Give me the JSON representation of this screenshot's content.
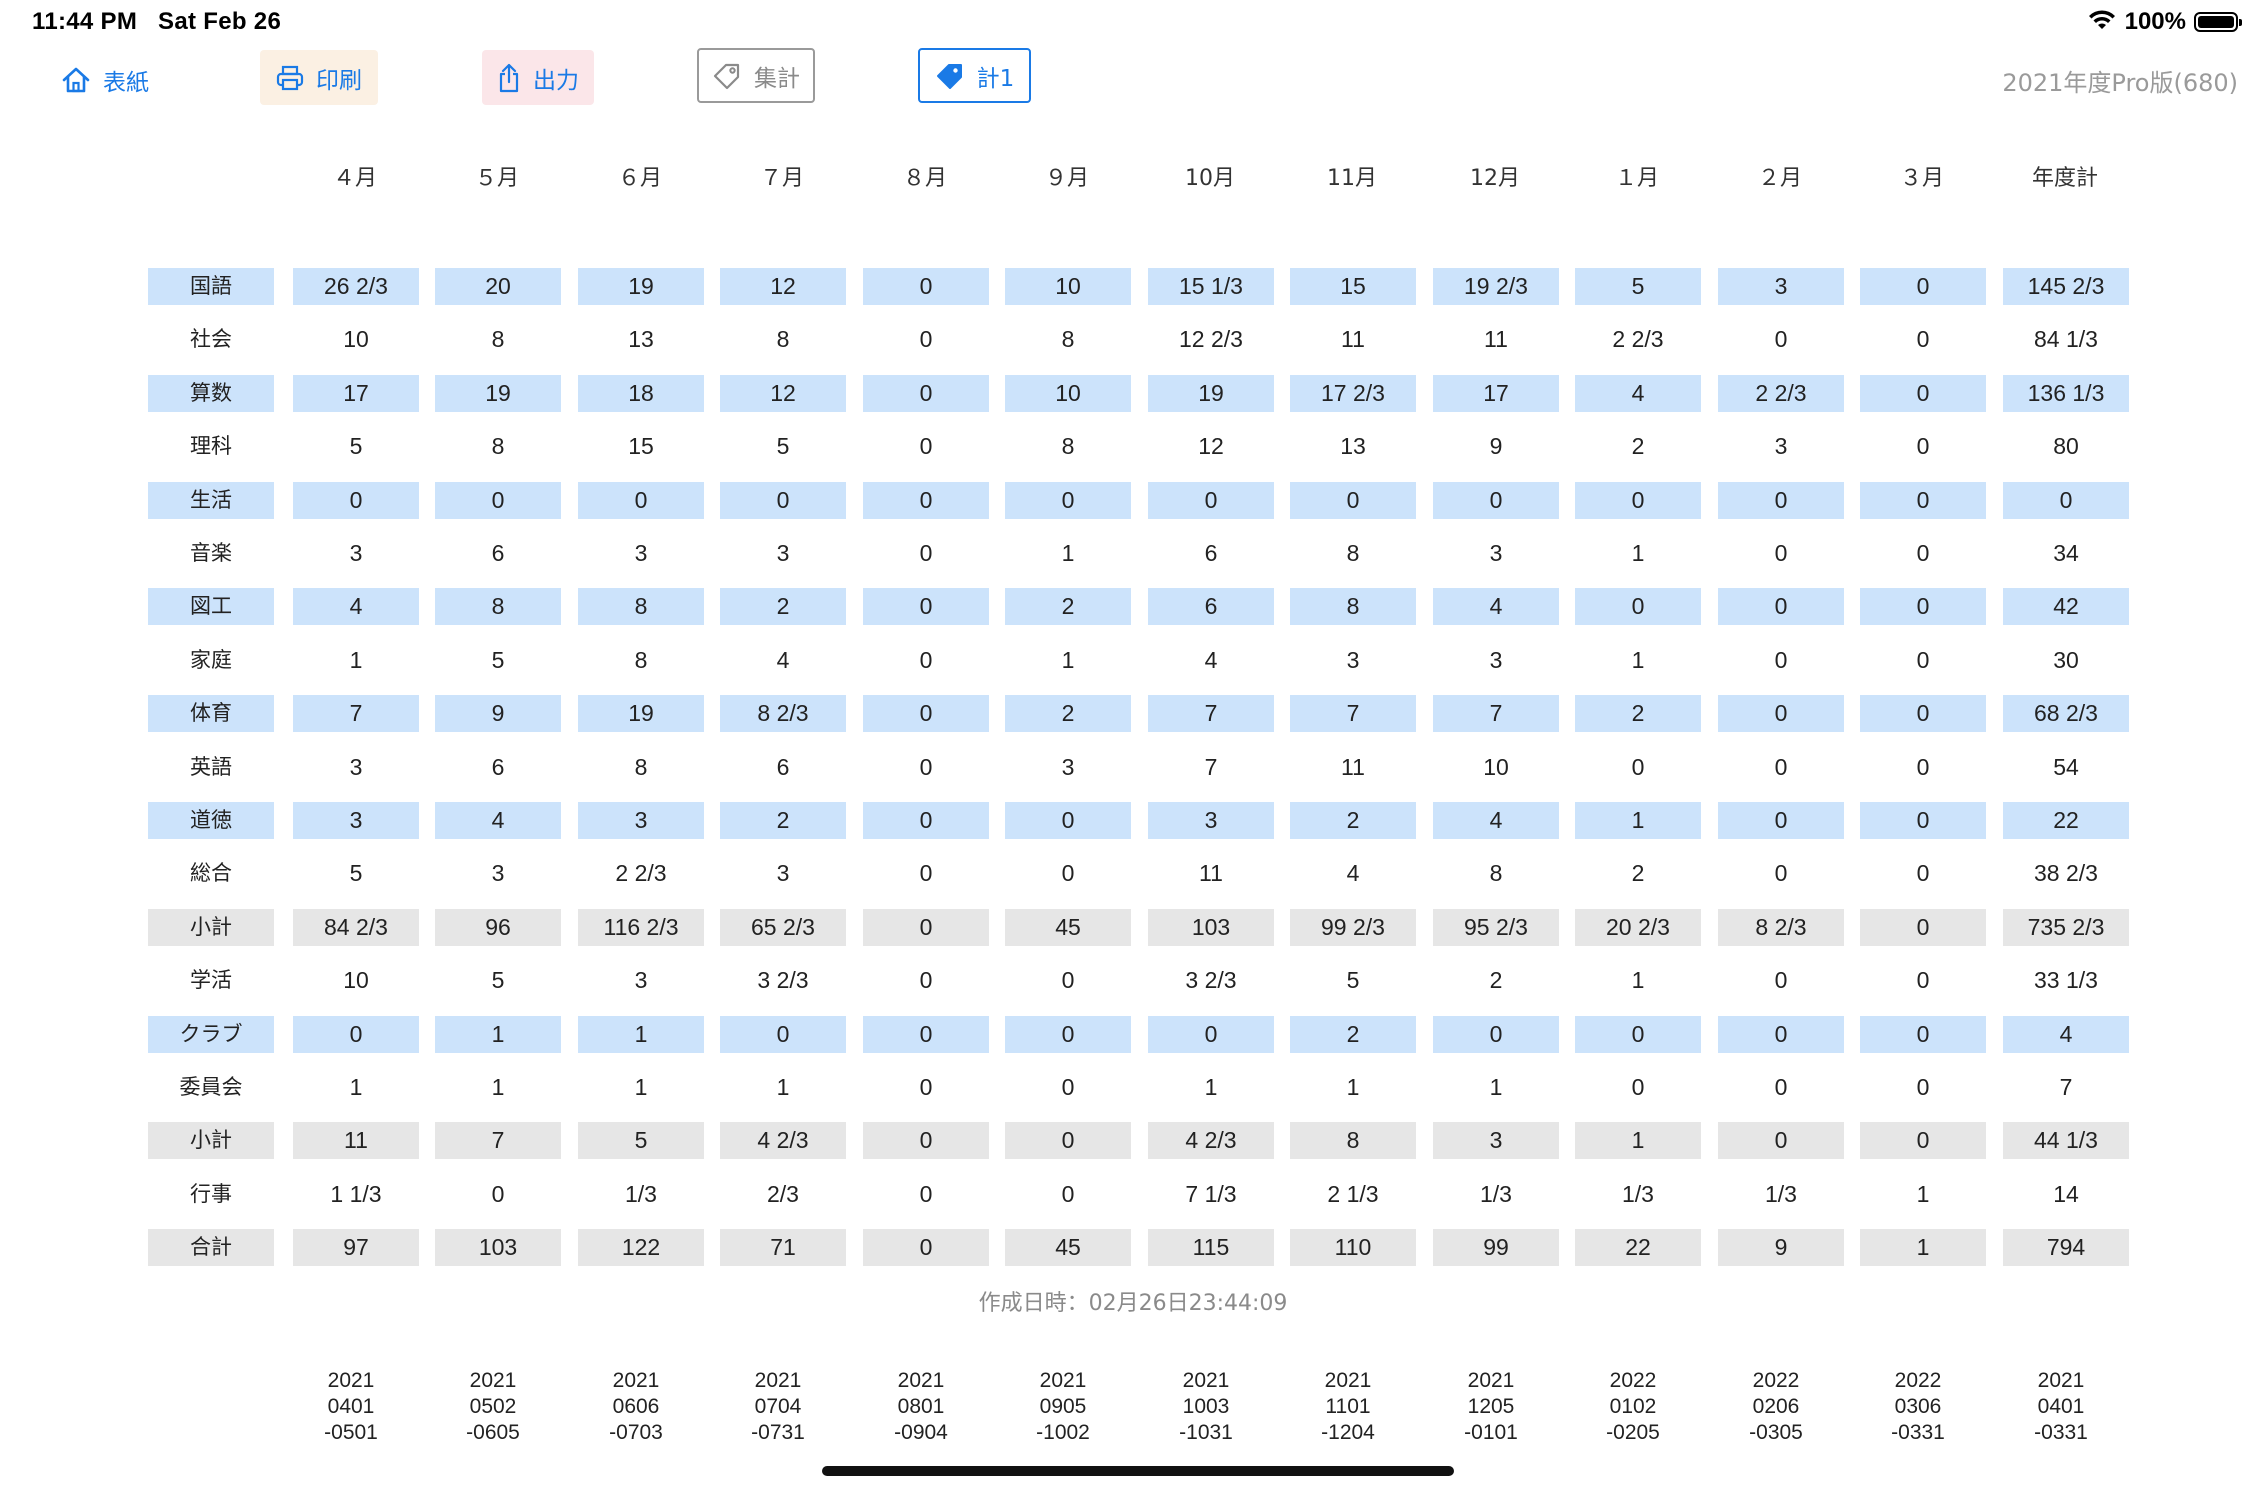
{
  "status_bar": {
    "time": "11:44 PM",
    "date": "Sat Feb 26",
    "battery": "100%"
  },
  "toolbar": {
    "home_label": "表紙",
    "print_label": "印刷",
    "export_label": "出力",
    "total_label": "集計",
    "total1_label": "計1",
    "version": "2021年度Pro版(680)"
  },
  "months": [
    "４月",
    "５月",
    "６月",
    "７月",
    "８月",
    "９月",
    "10月",
    "11月",
    "12月",
    "１月",
    "２月",
    "３月",
    "年度計"
  ],
  "rows": [
    {
      "label": "国語",
      "style": "blue",
      "values": [
        "26 2/3",
        "20",
        "19",
        "12",
        "0",
        "10",
        "15 1/3",
        "15",
        "19 2/3",
        "5",
        "3",
        "0",
        "145 2/3"
      ]
    },
    {
      "label": "社会",
      "style": "plain",
      "values": [
        "10",
        "8",
        "13",
        "8",
        "0",
        "8",
        "12 2/3",
        "11",
        "11",
        "2 2/3",
        "0",
        "0",
        "84 1/3"
      ]
    },
    {
      "label": "算数",
      "style": "blue",
      "values": [
        "17",
        "19",
        "18",
        "12",
        "0",
        "10",
        "19",
        "17 2/3",
        "17",
        "4",
        "2 2/3",
        "0",
        "136 1/3"
      ]
    },
    {
      "label": "理科",
      "style": "plain",
      "values": [
        "5",
        "8",
        "15",
        "5",
        "0",
        "8",
        "12",
        "13",
        "9",
        "2",
        "3",
        "0",
        "80"
      ]
    },
    {
      "label": "生活",
      "style": "blue",
      "values": [
        "0",
        "0",
        "0",
        "0",
        "0",
        "0",
        "0",
        "0",
        "0",
        "0",
        "0",
        "0",
        "0"
      ]
    },
    {
      "label": "音楽",
      "style": "plain",
      "values": [
        "3",
        "6",
        "3",
        "3",
        "0",
        "1",
        "6",
        "8",
        "3",
        "1",
        "0",
        "0",
        "34"
      ]
    },
    {
      "label": "図工",
      "style": "blue",
      "values": [
        "4",
        "8",
        "8",
        "2",
        "0",
        "2",
        "6",
        "8",
        "4",
        "0",
        "0",
        "0",
        "42"
      ]
    },
    {
      "label": "家庭",
      "style": "plain",
      "values": [
        "1",
        "5",
        "8",
        "4",
        "0",
        "1",
        "4",
        "3",
        "3",
        "1",
        "0",
        "0",
        "30"
      ]
    },
    {
      "label": "体育",
      "style": "blue",
      "values": [
        "7",
        "9",
        "19",
        "8 2/3",
        "0",
        "2",
        "7",
        "7",
        "7",
        "2",
        "0",
        "0",
        "68 2/3"
      ]
    },
    {
      "label": "英語",
      "style": "plain",
      "values": [
        "3",
        "6",
        "8",
        "6",
        "0",
        "3",
        "7",
        "11",
        "10",
        "0",
        "0",
        "0",
        "54"
      ]
    },
    {
      "label": "道徳",
      "style": "blue",
      "values": [
        "3",
        "4",
        "3",
        "2",
        "0",
        "0",
        "3",
        "2",
        "4",
        "1",
        "0",
        "0",
        "22"
      ]
    },
    {
      "label": "総合",
      "style": "plain",
      "values": [
        "5",
        "3",
        "2 2/3",
        "3",
        "0",
        "0",
        "11",
        "4",
        "8",
        "2",
        "0",
        "0",
        "38 2/3"
      ]
    },
    {
      "label": "小計",
      "style": "gray",
      "values": [
        "84 2/3",
        "96",
        "116 2/3",
        "65 2/3",
        "0",
        "45",
        "103",
        "99 2/3",
        "95 2/3",
        "20 2/3",
        "8 2/3",
        "0",
        "735 2/3"
      ]
    },
    {
      "label": "学活",
      "style": "plain",
      "values": [
        "10",
        "5",
        "3",
        "3 2/3",
        "0",
        "0",
        "3 2/3",
        "5",
        "2",
        "1",
        "0",
        "0",
        "33 1/3"
      ]
    },
    {
      "label": "クラブ",
      "style": "blue",
      "values": [
        "0",
        "1",
        "1",
        "0",
        "0",
        "0",
        "0",
        "2",
        "0",
        "0",
        "0",
        "0",
        "4"
      ]
    },
    {
      "label": "委員会",
      "style": "plain",
      "values": [
        "1",
        "1",
        "1",
        "1",
        "0",
        "0",
        "1",
        "1",
        "1",
        "0",
        "0",
        "0",
        "7"
      ]
    },
    {
      "label": "小計",
      "style": "gray",
      "values": [
        "11",
        "7",
        "5",
        "4 2/3",
        "0",
        "0",
        "4 2/3",
        "8",
        "3",
        "1",
        "0",
        "0",
        "44 1/3"
      ]
    },
    {
      "label": "行事",
      "style": "plain",
      "values": [
        "1 1/3",
        "0",
        "1/3",
        "2/3",
        "0",
        "0",
        "7 1/3",
        "2 1/3",
        "1/3",
        "1/3",
        "1/3",
        "1",
        "14"
      ]
    },
    {
      "label": "合計",
      "style": "gray",
      "values": [
        "97",
        "103",
        "122",
        "71",
        "0",
        "45",
        "115",
        "110",
        "99",
        "22",
        "9",
        "1",
        "794"
      ]
    }
  ],
  "created_at": "作成日時：02月26日23:44:09",
  "date_ranges": [
    [
      "2021",
      "0401",
      "-0501"
    ],
    [
      "2021",
      "0502",
      "-0605"
    ],
    [
      "2021",
      "0606",
      "-0703"
    ],
    [
      "2021",
      "0704",
      "-0731"
    ],
    [
      "2021",
      "0801",
      "-0904"
    ],
    [
      "2021",
      "0905",
      "-1002"
    ],
    [
      "2021",
      "1003",
      "-1031"
    ],
    [
      "2021",
      "1101",
      "-1204"
    ],
    [
      "2021",
      "1205",
      "-0101"
    ],
    [
      "2022",
      "0102",
      "-0205"
    ],
    [
      "2022",
      "0206",
      "-0305"
    ],
    [
      "2022",
      "0306",
      "-0331"
    ],
    [
      "2021",
      "0401",
      "-0331"
    ]
  ],
  "colors": {
    "accent": "#1a7ae6",
    "row_blue": "#cce3fb",
    "row_gray": "#e6e6e6"
  },
  "icons": {
    "home": "house-icon",
    "print": "printer-icon",
    "export": "share-icon",
    "total": "tag-outline-icon",
    "total1": "tag-filled-icon"
  }
}
